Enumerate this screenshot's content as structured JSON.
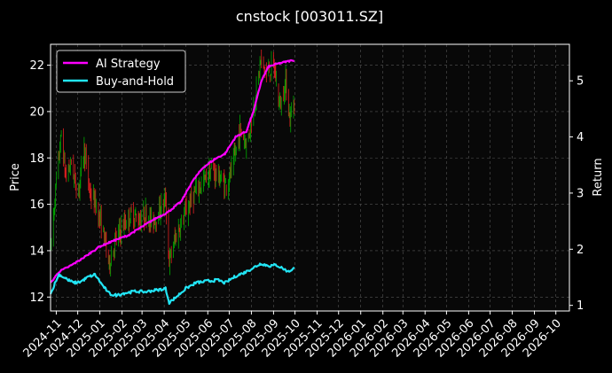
{
  "chart_data": {
    "type": "line",
    "title": "cnstock [003011.SZ]",
    "ylabel_left": "Price",
    "ylabel_right": "Return",
    "ylim_left": [
      11.4,
      22.9
    ],
    "ylim_right": [
      0.9,
      5.65
    ],
    "yticks_left": [
      12,
      14,
      16,
      18,
      20,
      22
    ],
    "yticks_right": [
      1,
      2,
      3,
      4,
      5
    ],
    "xlim": [
      "2024-10-24",
      "2026-10-20"
    ],
    "x_ticks": [
      "2024-11",
      "2024-12",
      "2025-01",
      "2025-02",
      "2025-03",
      "2025-04",
      "2025-05",
      "2025-06",
      "2025-07",
      "2025-08",
      "2025-09",
      "2025-10",
      "2025-11",
      "2025-12",
      "2026-01",
      "2026-02",
      "2026-03",
      "2026-04",
      "2026-05",
      "2026-06",
      "2026-07",
      "2026-08",
      "2026-09",
      "2026-10"
    ],
    "grid": true,
    "legend_position": "top-left",
    "colors": {
      "ai": "#ff00ff",
      "bh": "#22e5f5",
      "up": "#00aa00",
      "down": "#e02020",
      "grid": "#555555",
      "bg": "#000000"
    },
    "price_anchors": [
      [
        "2024-10-24",
        14.0
      ],
      [
        "2024-11-01",
        17.0
      ],
      [
        "2024-11-08",
        19.0
      ],
      [
        "2024-11-14",
        17.2
      ],
      [
        "2024-11-22",
        17.8
      ],
      [
        "2024-12-01",
        16.4
      ],
      [
        "2024-12-10",
        18.4
      ],
      [
        "2024-12-18",
        16.5
      ],
      [
        "2024-12-26",
        16.0
      ],
      [
        "2025-01-06",
        14.8
      ],
      [
        "2025-01-14",
        13.4
      ],
      [
        "2025-01-22",
        14.4
      ],
      [
        "2025-02-05",
        15.2
      ],
      [
        "2025-02-15",
        15.6
      ],
      [
        "2025-02-25",
        15.3
      ],
      [
        "2025-03-06",
        15.6
      ],
      [
        "2025-03-15",
        15.2
      ],
      [
        "2025-03-25",
        15.7
      ],
      [
        "2025-04-03",
        16.2
      ],
      [
        "2025-04-08",
        13.5
      ],
      [
        "2025-04-16",
        14.5
      ],
      [
        "2025-04-25",
        15.2
      ],
      [
        "2025-05-06",
        16.0
      ],
      [
        "2025-05-16",
        16.6
      ],
      [
        "2025-05-26",
        17.0
      ],
      [
        "2025-06-06",
        17.5
      ],
      [
        "2025-06-16",
        17.2
      ],
      [
        "2025-06-26",
        16.8
      ],
      [
        "2025-07-06",
        17.6
      ],
      [
        "2025-07-16",
        19.2
      ],
      [
        "2025-07-26",
        18.6
      ],
      [
        "2025-08-06",
        20.5
      ],
      [
        "2025-08-14",
        22.2
      ],
      [
        "2025-08-22",
        21.6
      ],
      [
        "2025-09-01",
        22.0
      ],
      [
        "2025-09-10",
        20.2
      ],
      [
        "2025-09-18",
        21.3
      ],
      [
        "2025-09-24",
        19.6
      ],
      [
        "2025-09-30",
        20.6
      ]
    ],
    "series": [
      {
        "name": "AI Strategy",
        "points": [
          [
            "2024-10-24",
            1.4
          ],
          [
            "2024-11-05",
            1.6
          ],
          [
            "2024-11-20",
            1.7
          ],
          [
            "2024-12-01",
            1.78
          ],
          [
            "2024-12-15",
            1.9
          ],
          [
            "2025-01-01",
            2.05
          ],
          [
            "2025-01-20",
            2.15
          ],
          [
            "2025-02-10",
            2.25
          ],
          [
            "2025-03-01",
            2.4
          ],
          [
            "2025-03-20",
            2.55
          ],
          [
            "2025-04-05",
            2.65
          ],
          [
            "2025-04-25",
            2.85
          ],
          [
            "2025-05-10",
            3.2
          ],
          [
            "2025-05-25",
            3.45
          ],
          [
            "2025-06-10",
            3.6
          ],
          [
            "2025-06-25",
            3.7
          ],
          [
            "2025-07-10",
            4.0
          ],
          [
            "2025-07-25",
            4.1
          ],
          [
            "2025-08-05",
            4.5
          ],
          [
            "2025-08-15",
            5.0
          ],
          [
            "2025-08-25",
            5.25
          ],
          [
            "2025-09-05",
            5.3
          ],
          [
            "2025-09-30",
            5.37
          ]
        ]
      },
      {
        "name": "Buy-and-Hold",
        "points": [
          [
            "2024-10-24",
            1.2
          ],
          [
            "2024-11-01",
            1.45
          ],
          [
            "2024-11-05",
            1.55
          ],
          [
            "2024-11-14",
            1.48
          ],
          [
            "2024-11-25",
            1.4
          ],
          [
            "2024-12-05",
            1.42
          ],
          [
            "2024-12-15",
            1.5
          ],
          [
            "2024-12-25",
            1.55
          ],
          [
            "2025-01-05",
            1.35
          ],
          [
            "2025-01-15",
            1.2
          ],
          [
            "2025-01-25",
            1.18
          ],
          [
            "2025-02-05",
            1.22
          ],
          [
            "2025-02-20",
            1.25
          ],
          [
            "2025-03-05",
            1.24
          ],
          [
            "2025-03-20",
            1.27
          ],
          [
            "2025-04-03",
            1.3
          ],
          [
            "2025-04-08",
            1.05
          ],
          [
            "2025-04-18",
            1.15
          ],
          [
            "2025-05-01",
            1.3
          ],
          [
            "2025-05-15",
            1.4
          ],
          [
            "2025-05-30",
            1.43
          ],
          [
            "2025-06-15",
            1.45
          ],
          [
            "2025-06-25",
            1.4
          ],
          [
            "2025-07-10",
            1.52
          ],
          [
            "2025-07-25",
            1.6
          ],
          [
            "2025-08-05",
            1.68
          ],
          [
            "2025-08-15",
            1.75
          ],
          [
            "2025-08-25",
            1.7
          ],
          [
            "2025-09-05",
            1.72
          ],
          [
            "2025-09-15",
            1.65
          ],
          [
            "2025-09-22",
            1.6
          ],
          [
            "2025-09-30",
            1.67
          ]
        ]
      }
    ]
  }
}
